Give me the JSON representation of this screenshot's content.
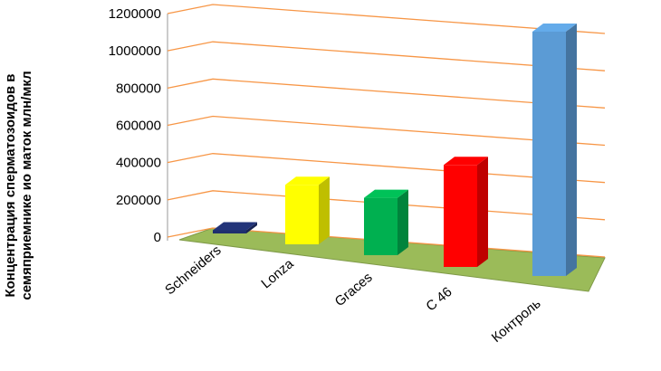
{
  "chart_data": {
    "type": "bar3d",
    "y_label_lines": [
      "Концентрация сперматозоидов в",
      "семяприемнике ио маток млн/мкл"
    ],
    "categories": [
      "Schneiders",
      "Lonza",
      "Graces",
      "C 46",
      "Контроль"
    ],
    "values": [
      15000,
      280000,
      270000,
      480000,
      1150000
    ],
    "colors": [
      "#1f2f6e",
      "#ffff00",
      "#00b050",
      "#ff0000",
      "#5b9bd5"
    ],
    "ylim": [
      0,
      1200000
    ],
    "yticks": [
      0,
      200000,
      400000,
      600000,
      800000,
      1000000,
      1200000
    ],
    "grid": true,
    "grid_color": "#f79646",
    "floor_color": "#9bbb59"
  }
}
